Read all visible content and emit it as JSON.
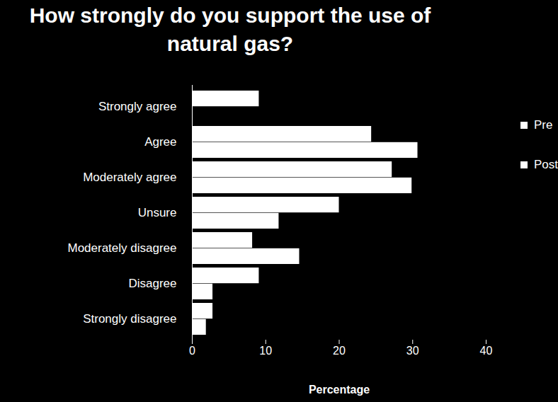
{
  "chart_data": {
    "type": "bar",
    "orientation": "horizontal",
    "title": "How strongly do you support the use of natural gas?",
    "x_label": "Percentage",
    "categories": [
      "Strongly agree",
      "Agree",
      "Moderately agree",
      "Unsure",
      "Moderately disagree",
      "Disagree",
      "Strongly disagree"
    ],
    "series": [
      {
        "name": "Pre",
        "color": "#ffffff",
        "values": [
          9.1,
          24.4,
          27.2,
          20.0,
          8.2,
          9.1,
          2.8
        ]
      },
      {
        "name": "Post",
        "color": "#ffffff",
        "values": [
          0,
          30.7,
          29.9,
          11.8,
          14.6,
          2.8,
          1.9
        ]
      }
    ],
    "xlim": [
      0,
      40
    ],
    "xticks": [
      0,
      10,
      20,
      30,
      40
    ],
    "legend": "right",
    "grid": false
  }
}
